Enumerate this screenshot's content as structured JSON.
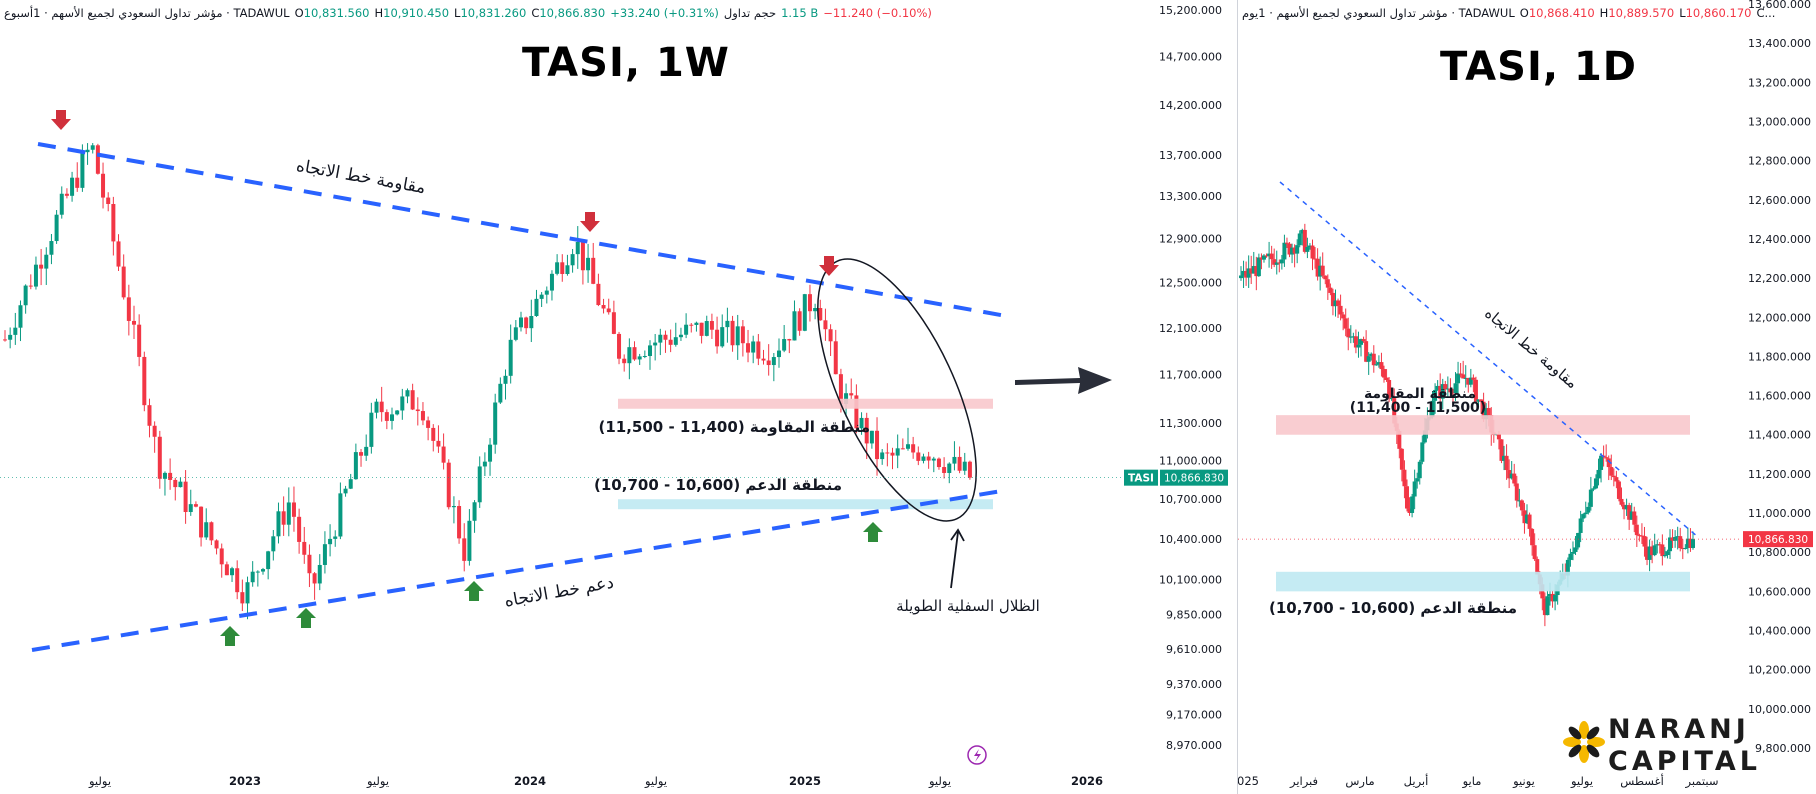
{
  "left": {
    "info": {
      "symbol": "مؤشر تداول السعودي لجميع الأسهم · 1أسبوع · TADAWUL",
      "o_label": "O",
      "o_value": "10,831.560",
      "h_label": "H",
      "h_value": "10,910.450",
      "l_label": "L",
      "l_value": "10,831.260",
      "c_label": "C",
      "c_value": "10,866.830",
      "change": "+33.240 (+0.31%)",
      "volume": "1.15 B",
      "volume_label": "حجم تداول",
      "change2": "−11.240 (−0.10%)"
    },
    "title": "TASI, 1W",
    "price_tag_symbol": "TASI",
    "price_tag_value": "10,866.830"
  },
  "right": {
    "info": {
      "symbol": "مؤشر تداول السعودي لجميع الأسهم · 1يوم · TADAWUL",
      "o_label": "O",
      "o_value": "10,868.410",
      "h_label": "H",
      "h_value": "10,889.570",
      "l_label": "L",
      "l_value": "10,860.170",
      "c_label": "C...",
      "c_value": ""
    },
    "title": "TASI, 1D",
    "price_tag_value": "10,866.830"
  },
  "logo": {
    "line1": "NARANJ",
    "line2": "CAPITAL"
  },
  "colors": {
    "up": "#089981",
    "down": "#f23645",
    "trend": "#2962ff",
    "resistance_zone": "#f8c8cc",
    "support_zone": "#bfe9f2",
    "arrow_down": "#d0303c",
    "arrow_up": "#2e8b3a"
  },
  "chart_data": [
    {
      "type": "candlestick",
      "symbol": "TASI",
      "timeframe": "1W",
      "title": "TASI, 1W",
      "y_axis": {
        "scale": "log",
        "ticks": [
          "15,200.000",
          "14,700.000",
          "14,200.000",
          "13,700.000",
          "13,300.000",
          "12,900.000",
          "12,500.000",
          "12,100.000",
          "11,700.000",
          "11,300.000",
          "11,000.000",
          "10,700.000",
          "10,400.000",
          "10,100.000",
          "9,850.000",
          "9,610.000",
          "9,370.000",
          "9,170.000",
          "8,970.000"
        ]
      },
      "x_axis": {
        "ticks": [
          "يوليو",
          "2023",
          "يوليو",
          "2024",
          "يوليو",
          "2025",
          "يوليو",
          "2026"
        ]
      },
      "approx_path": [
        {
          "date": "2022-01",
          "price": 12000
        },
        {
          "date": "2022-05",
          "price": 13800
        },
        {
          "date": "2022-08",
          "price": 11000
        },
        {
          "date": "2022-12",
          "price": 10000
        },
        {
          "date": "2023-02",
          "price": 10700
        },
        {
          "date": "2023-03",
          "price": 10000
        },
        {
          "date": "2023-06",
          "price": 11400
        },
        {
          "date": "2023-08",
          "price": 11500
        },
        {
          "date": "2023-10",
          "price": 10300
        },
        {
          "date": "2023-12",
          "price": 11900
        },
        {
          "date": "2024-03",
          "price": 12900
        },
        {
          "date": "2024-05",
          "price": 11900
        },
        {
          "date": "2024-09",
          "price": 12100
        },
        {
          "date": "2024-12",
          "price": 11900
        },
        {
          "date": "2025-02",
          "price": 12400
        },
        {
          "date": "2025-03",
          "price": 11600
        },
        {
          "date": "2025-05",
          "price": 11000
        },
        {
          "date": "2025-07",
          "price": 11100
        },
        {
          "date": "2025-09",
          "price": 10866.83
        }
      ],
      "last_price": 10866.83,
      "zones": [
        {
          "label": "منطقة المقاومة (11,400 - 11,500)",
          "low": 11400,
          "high": 11500
        },
        {
          "label": "منطقة الدعم (10,600 - 10,700)",
          "low": 10600,
          "high": 10700
        }
      ],
      "trendlines": [
        {
          "label": "مقاومة خط الاتجاه"
        },
        {
          "label": "دعم خط الاتجاه"
        }
      ],
      "annotations": [
        {
          "text": "الظلال السفلية الطويلة"
        }
      ]
    },
    {
      "type": "candlestick",
      "symbol": "TASI",
      "timeframe": "1D",
      "title": "TASI, 1D",
      "y_axis": {
        "ticks": [
          "13,600.000",
          "13,400.000",
          "13,200.000",
          "13,000.000",
          "12,800.000",
          "12,600.000",
          "12,400.000",
          "12,200.000",
          "12,000.000",
          "11,800.000",
          "11,600.000",
          "11,400.000",
          "11,200.000",
          "11,000.000",
          "10,800.000",
          "10,600.000",
          "10,400.000",
          "10,200.000",
          "10,000.000",
          "9,800.000"
        ]
      },
      "x_axis": {
        "ticks": [
          "025",
          "فبراير",
          "مارس",
          "أبريل",
          "مايو",
          "يونيو",
          "يوليو",
          "أغسطس",
          "سبتمبر"
        ]
      },
      "approx_path": [
        {
          "date": "2025-01-01",
          "price": 12200
        },
        {
          "date": "2025-02-05",
          "price": 12400
        },
        {
          "date": "2025-03-05",
          "price": 11900
        },
        {
          "date": "2025-03-25",
          "price": 11700
        },
        {
          "date": "2025-04-06",
          "price": 11000
        },
        {
          "date": "2025-04-20",
          "price": 11600
        },
        {
          "date": "2025-05-10",
          "price": 11700
        },
        {
          "date": "2025-05-25",
          "price": 11400
        },
        {
          "date": "2025-06-15",
          "price": 10900
        },
        {
          "date": "2025-06-22",
          "price": 10500
        },
        {
          "date": "2025-07-05",
          "price": 10700
        },
        {
          "date": "2025-07-25",
          "price": 11300
        },
        {
          "date": "2025-08-20",
          "price": 10800
        },
        {
          "date": "2025-09-15",
          "price": 10866.83
        }
      ],
      "last_price": 10866.83,
      "zones": [
        {
          "label": "منطقة المقاومة",
          "label2": "(11,400 - 11,500)",
          "low": 11400,
          "high": 11500
        },
        {
          "label": "منطقة الدعم (10,600 - 10,700)",
          "low": 10600,
          "high": 10700
        }
      ],
      "trendlines": [
        {
          "label": "مقاومة خط الاتجاه"
        }
      ]
    }
  ]
}
